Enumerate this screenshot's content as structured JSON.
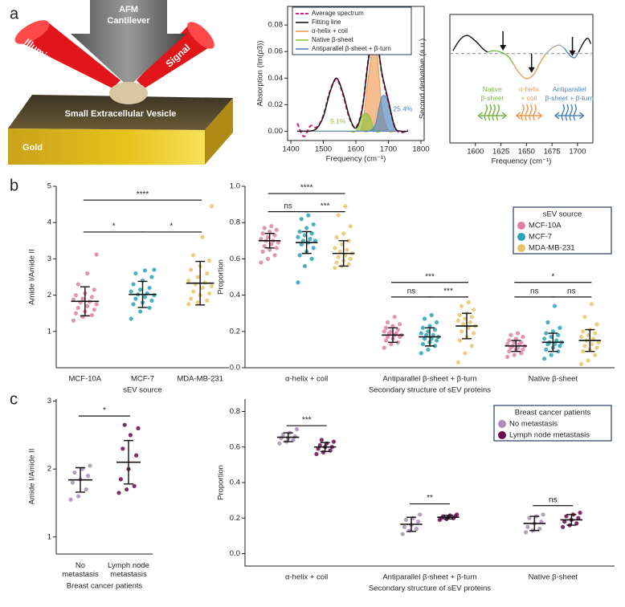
{
  "panel_labels": [
    "a",
    "b",
    "c"
  ],
  "illustration": {
    "cantilever": [
      "AFM",
      "Cantilever"
    ],
    "illumination": "Illumination",
    "signal": "Signal",
    "vesicle": "Small Extracellular Vesicle",
    "substrate": "Gold"
  },
  "chart_data": [
    {
      "type": "line",
      "xlabel": "Frequency (cm⁻¹)",
      "ylabel": "Absorption (Im(ρ3))",
      "frame": true,
      "legend": "upper left",
      "xlim": [
        1390,
        1810
      ],
      "xticks": [
        1400,
        1500,
        1600,
        1700,
        1800
      ],
      "ylim": [
        -0.007,
        0.094
      ],
      "yticks": [
        {
          "value": 0,
          "label": "0.00"
        },
        {
          "value": 0.02,
          "label": "0.02"
        },
        {
          "value": 0.04,
          "label": "0.04"
        },
        {
          "value": 0.06,
          "label": "0.06"
        },
        {
          "value": 0.08,
          "label": "0.08"
        }
      ],
      "x": [
        1420,
        1440,
        1460,
        1480,
        1500,
        1520,
        1540,
        1560,
        1580,
        1600,
        1620,
        1640,
        1660,
        1680,
        1700,
        1720,
        1740,
        1760
      ],
      "series": [
        {
          "name": "Average spectrum",
          "color": "#d0207a",
          "dash": true,
          "values": [
            0.006,
            -0.004,
            0.004,
            0.003,
            0.012,
            0.03,
            0.039,
            0.028,
            0.01,
            0.003,
            0.018,
            0.057,
            0.075,
            0.043,
            0.022,
            0.003,
            -0.001,
            0.001
          ]
        },
        {
          "name": "Fitting line",
          "color": "#111111",
          "values": [
            0,
            0,
            0.0002,
            0.0022,
            0.011,
            0.029,
            0.04,
            0.029,
            0.011,
            0.0024,
            0.017,
            0.056,
            0.074,
            0.044,
            0.023,
            0.003,
            0,
            0
          ]
        },
        {
          "name": "α-helix + coil",
          "color": "#ef9a55",
          "fill": true,
          "label": "65.5%",
          "values": [
            0,
            0,
            0,
            0,
            0,
            0,
            0,
            0,
            0,
            0,
            0.0048,
            0.044,
            0.069,
            0.018,
            0.0008,
            0,
            0,
            0
          ]
        },
        {
          "name": "Native β-sheet",
          "color": "#8cc43f",
          "fill": true,
          "label": "9.1%",
          "values": [
            0,
            0,
            0,
            0,
            0,
            0,
            0,
            0,
            0,
            0.0002,
            0.012,
            0.012,
            0,
            0,
            0,
            0,
            0,
            0
          ]
        },
        {
          "name": "Antiparallel β-sheet + β-turn",
          "color": "#4f86bf",
          "fill": true,
          "label": "25.4%",
          "values": [
            0,
            0,
            0,
            0,
            0,
            0,
            0,
            0,
            0,
            0,
            0,
            0,
            0.0053,
            0.026,
            0.022,
            0.003,
            0,
            0
          ]
        }
      ]
    },
    {
      "type": "line",
      "xlabel": "Frequency (cm⁻¹)",
      "ylabel": "Second derivative (a.u.)",
      "frame": true,
      "zero_line": true,
      "xlim": [
        1575,
        1715
      ],
      "xticks": [
        1600,
        1625,
        1650,
        1675,
        1700
      ],
      "ylim": [
        -3.2,
        1.4
      ],
      "series": [
        {
          "color": "#111111",
          "x": [
            1578,
            1585,
            1592,
            1600,
            1608,
            1612
          ],
          "values": [
            0.1,
            0.5,
            0.65,
            0.45,
            0.15,
            0.05
          ]
        },
        {
          "color": "#7ab648",
          "x": [
            1612,
            1618,
            1625,
            1632,
            1637
          ],
          "values": [
            0.05,
            0.1,
            0.05,
            -0.1,
            -0.35
          ]
        },
        {
          "color": "#ef9a55",
          "x": [
            1637,
            1643,
            1650,
            1657,
            1663,
            1668
          ],
          "values": [
            -0.35,
            -0.7,
            -0.9,
            -0.75,
            -0.35,
            -0.05
          ]
        },
        {
          "color": "#b0b0b0",
          "x": [
            1668,
            1675,
            1682,
            1687
          ],
          "values": [
            -0.05,
            0.2,
            0.3,
            0.2
          ]
        },
        {
          "color": "#4f86bf",
          "x": [
            1687,
            1692,
            1697,
            1701
          ],
          "values": [
            0.2,
            -0.05,
            -0.15,
            0.05
          ]
        },
        {
          "color": "#111111",
          "x": [
            1701,
            1706,
            1710,
            1713
          ],
          "values": [
            0.05,
            0.4,
            0.55,
            0.35
          ]
        }
      ],
      "markers": [
        1627,
        1655,
        1695
      ],
      "bands": [
        {
          "lines": [
            "Native",
            "β-sheet"
          ],
          "color": "#7ab648",
          "range": [
            1603,
            1630
          ]
        },
        {
          "lines": [
            "α-helix",
            "+ coil"
          ],
          "color": "#ef9a55",
          "range": [
            1640,
            1665
          ]
        },
        {
          "lines": [
            "Antiparallel",
            "β-sheet + β-turn"
          ],
          "color": "#4f86bf",
          "range": [
            1678,
            1706
          ]
        }
      ]
    },
    {
      "type": "dot",
      "xlabel": "sEV source",
      "ylabel": "Amide I/Amide II",
      "ylim": [
        0,
        5
      ],
      "yticks": [
        1,
        2,
        3,
        4,
        5
      ],
      "groups": [
        {
          "label": "MCF-10A",
          "color": "#e07fa6",
          "mean": 1.83,
          "sd": 0.4,
          "values": [
            1.3,
            1.4,
            1.45,
            1.5,
            1.55,
            1.6,
            1.65,
            1.7,
            1.75,
            1.8,
            1.82,
            1.88,
            1.9,
            1.95,
            2.0,
            2.05,
            2.15,
            2.3,
            2.6,
            3.12
          ]
        },
        {
          "label": "MCF-7",
          "color": "#2aa3b5",
          "mean": 2.02,
          "sd": 0.36,
          "values": [
            1.35,
            1.55,
            1.65,
            1.75,
            1.8,
            1.85,
            1.9,
            1.95,
            2.0,
            2.02,
            2.05,
            2.1,
            2.15,
            2.2,
            2.3,
            2.4,
            2.5,
            2.6,
            2.68,
            2.7
          ]
        },
        {
          "label": "MDA-MB-231",
          "color": "#e8c56a",
          "mean": 2.33,
          "sd": 0.6,
          "values": [
            1.75,
            1.8,
            1.85,
            1.9,
            2.0,
            2.05,
            2.1,
            2.2,
            2.25,
            2.3,
            2.35,
            2.4,
            2.5,
            2.6,
            2.7,
            2.8,
            2.95,
            3.1,
            3.6,
            4.45
          ]
        }
      ],
      "brackets": [
        {
          "from": 0,
          "to": 2,
          "y": 4.62,
          "label": "****"
        },
        {
          "from": 0,
          "to": 1,
          "y": 3.74,
          "label": "*"
        },
        {
          "from": 1,
          "to": 2,
          "y": 3.74,
          "label": "*"
        }
      ]
    },
    {
      "type": "dot",
      "xlabel": "Secondary structure of sEV proteins",
      "ylabel": "Proportion",
      "legend": "upper right",
      "legend_title": "sEV source",
      "ylim": [
        0,
        1
      ],
      "yticks": [
        {
          "value": 0,
          "label": "0.0"
        },
        0.2,
        0.4,
        0.6,
        0.8,
        {
          "value": 1,
          "label": "1.0"
        }
      ],
      "categories": [
        "α-helix + coil",
        "Antiparallel β-sheet  + β-turn",
        "Native β-sheet"
      ],
      "series": [
        {
          "name": "MCF-10A",
          "color": "#e07fa6",
          "mean": [
            0.7,
            0.18,
            0.12
          ],
          "sd": [
            0.04,
            0.04,
            0.03
          ],
          "values": [
            [
              0.58,
              0.6,
              0.62,
              0.64,
              0.65,
              0.66,
              0.67,
              0.68,
              0.69,
              0.7,
              0.7,
              0.71,
              0.72,
              0.73,
              0.74,
              0.75,
              0.76,
              0.77,
              0.78
            ],
            [
              0.11,
              0.13,
              0.14,
              0.15,
              0.16,
              0.17,
              0.17,
              0.18,
              0.18,
              0.19,
              0.19,
              0.2,
              0.2,
              0.21,
              0.22,
              0.23,
              0.24,
              0.25,
              0.28
            ],
            [
              0.06,
              0.07,
              0.08,
              0.09,
              0.1,
              0.1,
              0.11,
              0.11,
              0.12,
              0.12,
              0.13,
              0.13,
              0.14,
              0.14,
              0.15,
              0.16,
              0.17,
              0.18,
              0.19
            ]
          ]
        },
        {
          "name": "MCF-7",
          "color": "#2aa3b5",
          "mean": [
            0.69,
            0.17,
            0.14
          ],
          "sd": [
            0.06,
            0.05,
            0.05
          ],
          "values": [
            [
              0.47,
              0.56,
              0.6,
              0.62,
              0.64,
              0.66,
              0.68,
              0.69,
              0.7,
              0.7,
              0.71,
              0.72,
              0.73,
              0.74,
              0.75,
              0.77,
              0.79,
              0.82,
              0.84
            ],
            [
              0.08,
              0.1,
              0.12,
              0.13,
              0.14,
              0.15,
              0.16,
              0.16,
              0.17,
              0.18,
              0.18,
              0.19,
              0.2,
              0.21,
              0.22,
              0.23,
              0.25,
              0.27,
              0.29
            ],
            [
              0.05,
              0.07,
              0.09,
              0.1,
              0.11,
              0.12,
              0.13,
              0.13,
              0.14,
              0.14,
              0.15,
              0.16,
              0.17,
              0.18,
              0.19,
              0.2,
              0.22,
              0.25,
              0.34
            ]
          ]
        },
        {
          "name": "MDA-MB-231",
          "color": "#e8c56a",
          "mean": [
            0.63,
            0.23,
            0.15
          ],
          "sd": [
            0.07,
            0.07,
            0.06
          ],
          "values": [
            [
              0.55,
              0.56,
              0.57,
              0.58,
              0.59,
              0.6,
              0.61,
              0.62,
              0.63,
              0.64,
              0.65,
              0.66,
              0.68,
              0.7,
              0.72,
              0.74,
              0.78,
              0.84,
              0.89
            ],
            [
              0.03,
              0.08,
              0.12,
              0.15,
              0.17,
              0.19,
              0.2,
              0.22,
              0.23,
              0.24,
              0.25,
              0.26,
              0.27,
              0.28,
              0.29,
              0.3,
              0.32,
              0.34,
              0.36
            ],
            [
              0.02,
              0.04,
              0.07,
              0.09,
              0.1,
              0.11,
              0.12,
              0.13,
              0.14,
              0.15,
              0.16,
              0.17,
              0.18,
              0.19,
              0.2,
              0.21,
              0.24,
              0.28,
              0.35
            ]
          ]
        }
      ],
      "brackets": [
        {
          "from": [
            0,
            0
          ],
          "to": [
            0,
            2
          ],
          "y": 0.96,
          "label": "****"
        },
        {
          "from": [
            0,
            0
          ],
          "to": [
            0,
            1
          ],
          "y": 0.86,
          "label": "ns"
        },
        {
          "from": [
            0,
            1
          ],
          "to": [
            0,
            2
          ],
          "y": 0.86,
          "label": "***"
        },
        {
          "from": [
            1,
            0
          ],
          "to": [
            1,
            2
          ],
          "y": 0.47,
          "label": "***"
        },
        {
          "from": [
            1,
            0
          ],
          "to": [
            1,
            1
          ],
          "y": 0.39,
          "label": "ns"
        },
        {
          "from": [
            1,
            1
          ],
          "to": [
            1,
            2
          ],
          "y": 0.39,
          "label": "***"
        },
        {
          "from": [
            2,
            0
          ],
          "to": [
            2,
            2
          ],
          "y": 0.47,
          "label": "*"
        },
        {
          "from": [
            2,
            0
          ],
          "to": [
            2,
            1
          ],
          "y": 0.39,
          "label": "ns"
        },
        {
          "from": [
            2,
            1
          ],
          "to": [
            2,
            2
          ],
          "y": 0.39,
          "label": "ns"
        }
      ]
    },
    {
      "type": "dot",
      "xlabel": "Breast cancer patients",
      "ylabel": "Amide I/Amide II",
      "ylim": [
        0.75,
        3.03
      ],
      "yticks": [
        1,
        2,
        3
      ],
      "groups": [
        {
          "label": [
            "No",
            "metastasis"
          ],
          "color": "#a98fb5",
          "mean": 1.84,
          "sd": 0.18,
          "values": [
            1.55,
            1.6,
            1.7,
            1.8,
            1.85,
            1.9,
            1.95,
            2.0,
            2.05
          ]
        },
        {
          "label": [
            "Lymph node",
            "metastasis"
          ],
          "color": "#6a0a4f",
          "mean": 2.1,
          "sd": 0.32,
          "values": [
            1.65,
            1.7,
            1.75,
            1.85,
            2.0,
            2.2,
            2.3,
            2.5,
            2.6,
            2.65
          ]
        }
      ],
      "brackets": [
        {
          "from": 0,
          "to": 1,
          "y": 2.78,
          "label": "*"
        }
      ]
    },
    {
      "type": "dot",
      "xlabel": "Secondary structure of sEV proteins",
      "ylabel": "Proportion",
      "legend": "upper right",
      "legend_title": "Breast cancer patients",
      "ylim": [
        -0.07,
        0.87
      ],
      "yticks": [
        {
          "value": 0,
          "label": "0.0"
        },
        0.2,
        0.4,
        0.6,
        0.8
      ],
      "categories": [
        "α-helix + coil",
        "Antiparallel β-sheet  + β-turn",
        "Native β-sheet"
      ],
      "series": [
        {
          "name": "No metastasis",
          "color": "#a98fb5",
          "mean": [
            0.655,
            0.165,
            0.17
          ],
          "sd": [
            0.025,
            0.04,
            0.04
          ],
          "values": [
            [
              0.62,
              0.63,
              0.64,
              0.65,
              0.65,
              0.66,
              0.67,
              0.68,
              0.7
            ],
            [
              0.11,
              0.13,
              0.14,
              0.15,
              0.16,
              0.18,
              0.19,
              0.2,
              0.22
            ],
            [
              0.12,
              0.13,
              0.14,
              0.15,
              0.17,
              0.18,
              0.2,
              0.21,
              0.22
            ]
          ]
        },
        {
          "name": "Lymph node metastasis",
          "color": "#6a0a4f",
          "mean": [
            0.6,
            0.205,
            0.19
          ],
          "sd": [
            0.025,
            0.01,
            0.03
          ],
          "values": [
            [
              0.56,
              0.57,
              0.58,
              0.59,
              0.6,
              0.6,
              0.61,
              0.62,
              0.63,
              0.64
            ],
            [
              0.19,
              0.195,
              0.2,
              0.2,
              0.205,
              0.21,
              0.21,
              0.215,
              0.22
            ],
            [
              0.15,
              0.16,
              0.17,
              0.18,
              0.19,
              0.2,
              0.21,
              0.22,
              0.23
            ]
          ]
        }
      ],
      "brackets": [
        {
          "from": [
            0,
            0
          ],
          "to": [
            0,
            1
          ],
          "y": 0.72,
          "label": "***"
        },
        {
          "from": [
            1,
            0
          ],
          "to": [
            1,
            1
          ],
          "y": 0.28,
          "label": "**"
        },
        {
          "from": [
            2,
            0
          ],
          "to": [
            2,
            1
          ],
          "y": 0.27,
          "label": "ns"
        }
      ]
    }
  ]
}
